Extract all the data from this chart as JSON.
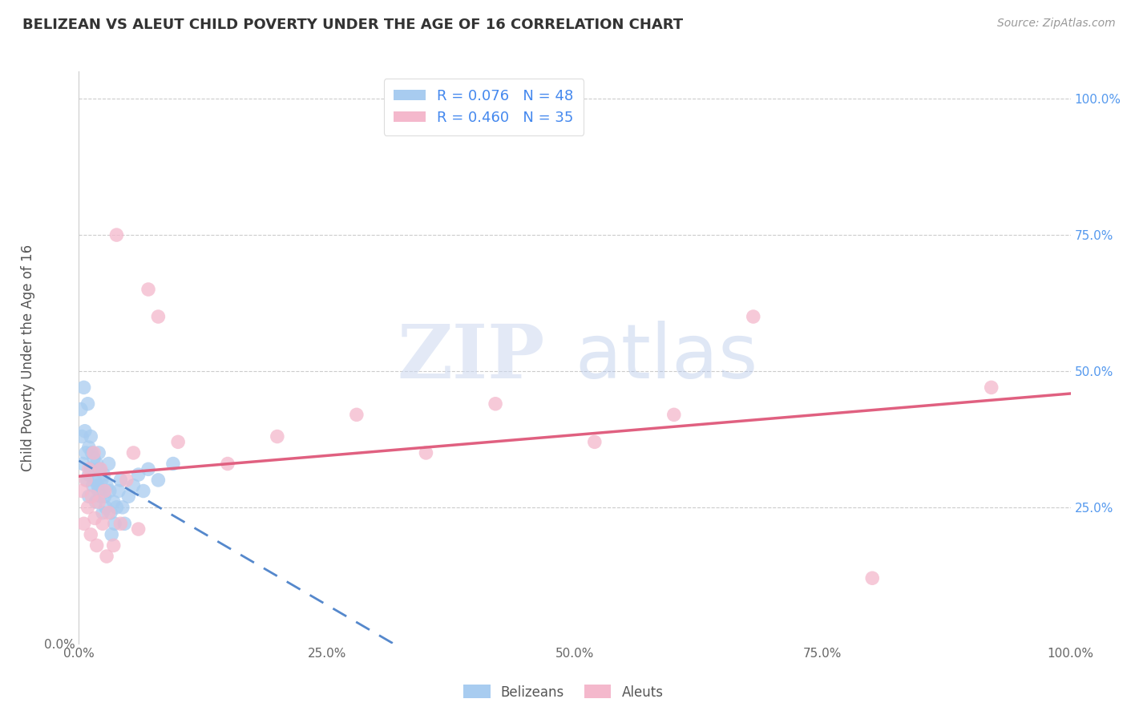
{
  "title": "BELIZEAN VS ALEUT CHILD POVERTY UNDER THE AGE OF 16 CORRELATION CHART",
  "source_text": "Source: ZipAtlas.com",
  "ylabel": "Child Poverty Under the Age of 16",
  "belizean_label": "Belizeans",
  "aleut_label": "Aleuts",
  "belizean_R": 0.076,
  "belizean_N": 48,
  "aleut_R": 0.46,
  "aleut_N": 35,
  "belizean_color": "#a8ccf0",
  "aleut_color": "#f4b8cc",
  "belizean_line_color": "#5588cc",
  "aleut_line_color": "#e06080",
  "xlim": [
    0,
    1.0
  ],
  "ylim": [
    0,
    1.05
  ],
  "xticks": [
    0,
    0.25,
    0.5,
    0.75,
    1.0
  ],
  "yticks": [
    0.0,
    0.25,
    0.5,
    0.75,
    1.0
  ],
  "xtick_labels": [
    "0.0%",
    "25.0%",
    "50.0%",
    "75.0%",
    "100.0%"
  ],
  "left_ytick_labels": [
    "0.0%",
    "",
    "",
    "",
    ""
  ],
  "right_ytick_labels": [
    "",
    "25.0%",
    "50.0%",
    "75.0%",
    "100.0%"
  ],
  "belizean_x": [
    0.002,
    0.003,
    0.004,
    0.005,
    0.006,
    0.007,
    0.008,
    0.009,
    0.01,
    0.01,
    0.01,
    0.012,
    0.012,
    0.013,
    0.014,
    0.015,
    0.016,
    0.017,
    0.018,
    0.019,
    0.02,
    0.02,
    0.021,
    0.022,
    0.023,
    0.024,
    0.025,
    0.026,
    0.027,
    0.028,
    0.03,
    0.031,
    0.032,
    0.033,
    0.035,
    0.036,
    0.038,
    0.04,
    0.042,
    0.044,
    0.046,
    0.05,
    0.055,
    0.06,
    0.065,
    0.07,
    0.08,
    0.095
  ],
  "belizean_y": [
    0.43,
    0.38,
    0.33,
    0.47,
    0.39,
    0.35,
    0.3,
    0.44,
    0.36,
    0.31,
    0.27,
    0.38,
    0.32,
    0.35,
    0.29,
    0.34,
    0.3,
    0.26,
    0.33,
    0.29,
    0.35,
    0.28,
    0.32,
    0.27,
    0.3,
    0.24,
    0.31,
    0.27,
    0.25,
    0.29,
    0.33,
    0.28,
    0.24,
    0.2,
    0.26,
    0.22,
    0.25,
    0.28,
    0.3,
    0.25,
    0.22,
    0.27,
    0.29,
    0.31,
    0.28,
    0.32,
    0.3,
    0.33
  ],
  "aleut_x": [
    0.003,
    0.005,
    0.007,
    0.009,
    0.01,
    0.012,
    0.013,
    0.015,
    0.016,
    0.018,
    0.02,
    0.022,
    0.024,
    0.026,
    0.028,
    0.03,
    0.035,
    0.038,
    0.042,
    0.048,
    0.055,
    0.06,
    0.07,
    0.08,
    0.1,
    0.15,
    0.2,
    0.28,
    0.35,
    0.42,
    0.52,
    0.6,
    0.68,
    0.8,
    0.92
  ],
  "aleut_y": [
    0.28,
    0.22,
    0.3,
    0.25,
    0.32,
    0.2,
    0.27,
    0.35,
    0.23,
    0.18,
    0.26,
    0.32,
    0.22,
    0.28,
    0.16,
    0.24,
    0.18,
    0.75,
    0.22,
    0.3,
    0.35,
    0.21,
    0.65,
    0.6,
    0.37,
    0.33,
    0.38,
    0.42,
    0.35,
    0.44,
    0.37,
    0.42,
    0.6,
    0.12,
    0.47
  ]
}
